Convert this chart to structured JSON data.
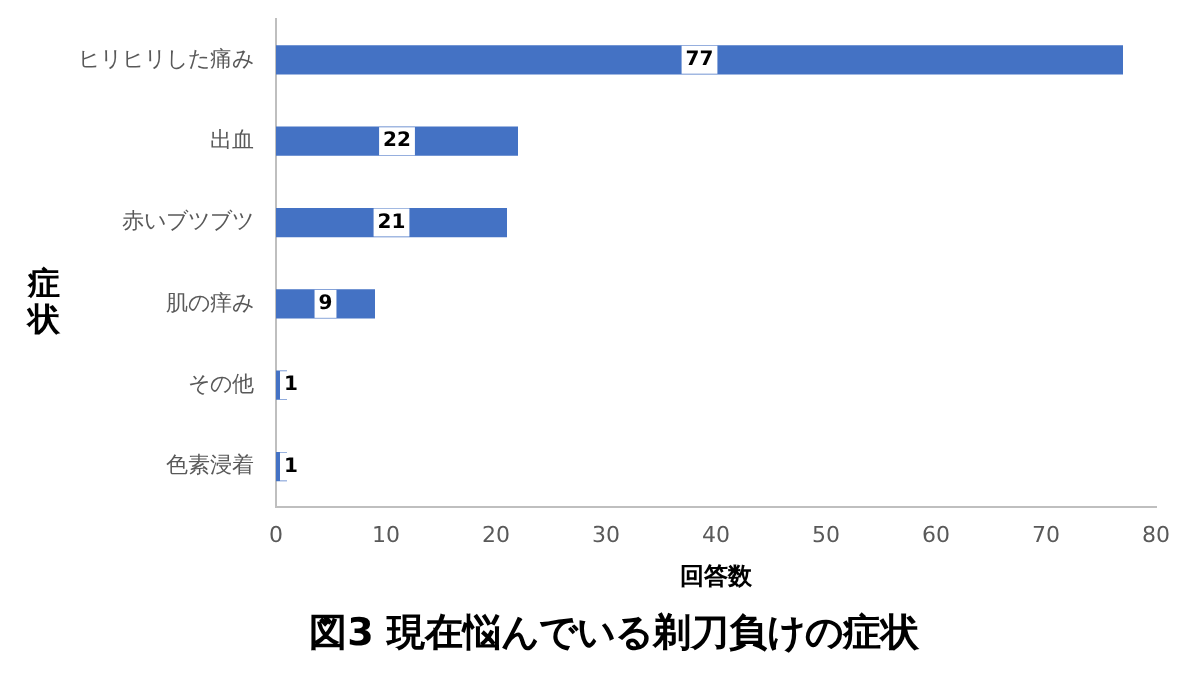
{
  "chart_data": {
    "type": "bar",
    "orientation": "horizontal",
    "title": "図3 現在悩んでいる剃刀負けの症状",
    "xlabel": "回答数",
    "ylabel": "症状",
    "categories": [
      "ヒリヒリした痛み",
      "出血",
      "赤いブツブツ",
      "肌の痒み",
      "その他",
      "色素浸着"
    ],
    "values": [
      77,
      22,
      21,
      9,
      1,
      1
    ],
    "color": "#4472c4",
    "xlim": [
      0,
      80
    ],
    "xticks": [
      0,
      10,
      20,
      30,
      40,
      50,
      60,
      70,
      80
    ],
    "grid": false,
    "legend": false,
    "data_labels": true
  }
}
